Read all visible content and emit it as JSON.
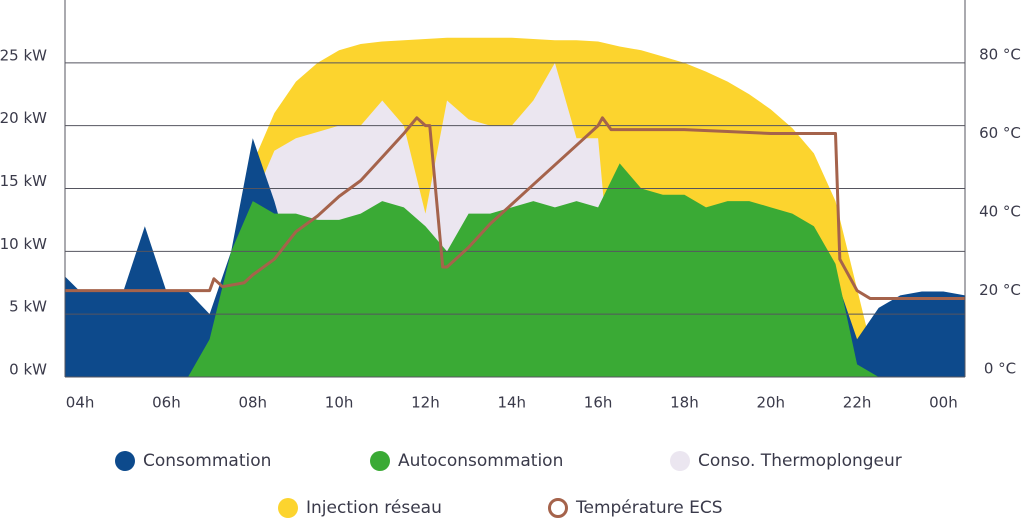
{
  "chart_data": {
    "type": "area",
    "x": [
      3.65,
      4,
      4.5,
      5,
      5.5,
      6,
      6.5,
      7,
      7.5,
      8,
      8.5,
      9,
      9.5,
      10,
      10.5,
      11,
      11.5,
      12,
      12.5,
      13,
      13.5,
      14,
      14.5,
      15,
      15.5,
      16,
      16.5,
      17,
      17.5,
      18,
      18.5,
      19,
      19.5,
      20,
      20.5,
      21,
      21.5,
      22,
      22.5,
      23,
      23.5,
      24,
      24.5
    ],
    "xlim": [
      3.65,
      24.5
    ],
    "xticks": [
      {
        "value": 4,
        "label": "04h"
      },
      {
        "value": 6,
        "label": "06h"
      },
      {
        "value": 8,
        "label": "08h"
      },
      {
        "value": 10,
        "label": "10h"
      },
      {
        "value": 12,
        "label": "12h"
      },
      {
        "value": 14,
        "label": "14h"
      },
      {
        "value": 16,
        "label": "16h"
      },
      {
        "value": 18,
        "label": "18h"
      },
      {
        "value": 20,
        "label": "20h"
      },
      {
        "value": 22,
        "label": "22h"
      },
      {
        "value": 24,
        "label": "00h"
      }
    ],
    "ylim": [
      0,
      30
    ],
    "yticks": [
      {
        "value": 0,
        "label": "0 kW"
      },
      {
        "value": 5,
        "label": "5 kW"
      },
      {
        "value": 10,
        "label": "10 kW"
      },
      {
        "value": 15,
        "label": "15 kW"
      },
      {
        "value": 20,
        "label": "20 kW"
      },
      {
        "value": 25,
        "label": "25 kW"
      }
    ],
    "y2lim": [
      0,
      96
    ],
    "y2ticks": [
      {
        "value": 0,
        "label": "0 °C"
      },
      {
        "value": 20,
        "label": "20 °C"
      },
      {
        "value": 40,
        "label": "40 °C"
      },
      {
        "value": 60,
        "label": "60 °C"
      },
      {
        "value": 80,
        "label": "80 °C"
      }
    ],
    "grid": true,
    "series": [
      {
        "name": "Injection réseau",
        "color": "#fcd42e",
        "values": [
          0,
          0,
          0,
          0,
          0,
          0,
          0,
          0,
          8,
          17,
          21,
          23.5,
          25,
          26,
          26.5,
          26.7,
          26.8,
          26.9,
          27,
          27,
          27,
          27,
          26.9,
          26.8,
          26.8,
          26.7,
          26.3,
          26,
          25.5,
          25,
          24.3,
          23.5,
          22.5,
          21.3,
          19.8,
          17.8,
          14,
          7,
          0,
          0,
          0,
          0,
          0
        ]
      },
      {
        "name": "Conso. Thermoplongeur",
        "color": "#ebe6f0",
        "values": [
          0,
          0,
          0,
          0,
          0,
          0,
          0,
          0,
          8,
          14,
          18,
          19,
          19.5,
          20,
          20,
          22,
          20,
          13,
          22,
          20.5,
          20,
          20,
          22,
          25,
          19,
          19,
          0,
          0,
          0,
          0,
          0,
          0,
          0,
          0,
          0,
          0,
          0,
          0,
          0,
          0,
          0,
          0,
          0
        ]
      },
      {
        "name": "Consommation",
        "color": "#0d4a8c",
        "values": [
          8,
          6.8,
          6.8,
          6.8,
          12,
          6.8,
          6.8,
          5,
          10,
          19,
          14,
          8,
          8,
          8,
          8,
          8,
          8,
          8,
          8,
          8,
          8,
          8,
          8,
          8,
          8,
          8,
          8,
          8,
          8,
          8,
          8,
          8,
          8,
          8,
          8,
          8,
          8,
          3,
          5.5,
          6.5,
          6.8,
          6.8,
          6.5
        ]
      },
      {
        "name": "Autoconsommation",
        "color": "#3aaa35",
        "values": [
          0,
          0,
          0,
          0,
          0,
          0,
          0,
          3,
          10,
          14,
          13,
          13,
          12.5,
          12.5,
          13,
          14,
          13.5,
          12,
          10,
          13,
          13,
          13.5,
          14,
          13.5,
          14,
          13.5,
          17,
          15,
          14.5,
          14.5,
          13.5,
          14,
          14,
          13.5,
          13,
          12,
          9,
          1,
          0,
          0,
          0,
          0,
          0
        ]
      },
      {
        "name": "Température ECS",
        "color": "#a5634b",
        "axis": "y2",
        "x": [
          3.65,
          7,
          7.1,
          7.3,
          7.8,
          8,
          8.5,
          9,
          9.5,
          10,
          10.5,
          11,
          11.5,
          11.8,
          12,
          12.1,
          12.4,
          12.5,
          13,
          13.5,
          14,
          14.5,
          15,
          15.5,
          16,
          16.1,
          16.3,
          17,
          18,
          19,
          20,
          21,
          21.5,
          21.6,
          22,
          22.3,
          24.5
        ],
        "values": [
          22,
          22,
          25,
          23,
          24,
          26,
          30,
          37,
          41,
          46,
          50,
          56,
          62,
          66,
          64,
          64,
          28,
          28,
          33,
          39,
          44,
          49,
          54,
          59,
          64,
          66,
          63,
          63,
          63,
          62.5,
          62,
          62,
          62,
          30,
          22,
          20,
          20
        ]
      }
    ]
  }
}
